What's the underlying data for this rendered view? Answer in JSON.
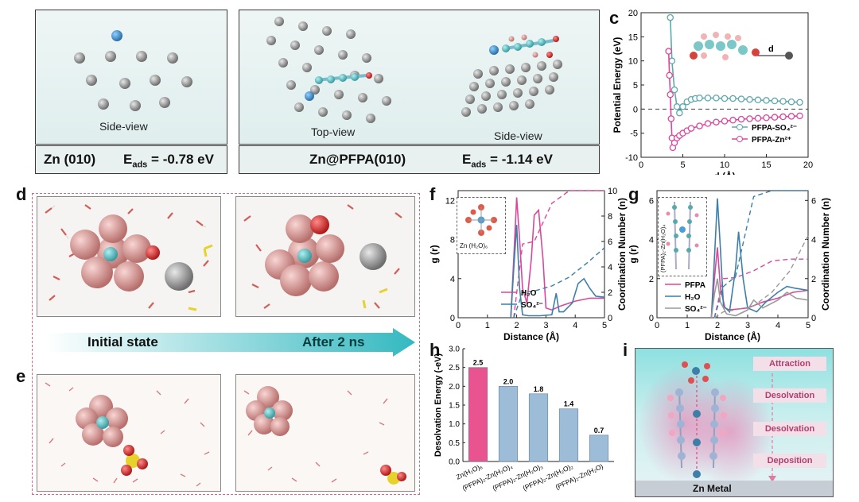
{
  "panels": {
    "a": {
      "label": "a",
      "caption": "Side-view",
      "surface": "Zn (010)",
      "energy_prefix": "E",
      "energy_sub": "ads",
      "energy_value": "= -0.78 eV"
    },
    "b": {
      "label": "b",
      "caption_left": "Top-view",
      "caption_right": "Side-view",
      "surface": "Zn@PFPA(010)",
      "energy_prefix": "E",
      "energy_sub": "ads",
      "energy_value": "= -1.14 eV"
    },
    "c": {
      "label": "c"
    },
    "d": {
      "label": "d"
    },
    "e": {
      "label": "e"
    },
    "f": {
      "label": "f",
      "inset": "Zn (H₂O)₆"
    },
    "g": {
      "label": "g",
      "inset": "(PFPA)₂-Zn(H₂O)₄"
    },
    "h": {
      "label": "h"
    },
    "i": {
      "label": "i",
      "stages": [
        "Attraction",
        "Desolvation",
        "Desolvation",
        "Deposition"
      ],
      "bottom": "Zn Metal"
    }
  },
  "arrow": {
    "left": "Initial state",
    "right": "After 2 ns"
  },
  "colors": {
    "teal": "#5fa8ad",
    "pink": "#d9489c",
    "grey": "#9a9a9a",
    "red": "#e03a5a",
    "blue": "#3d7fa8",
    "bar_pink": "#e9538f",
    "bar_blue": "#9dbcd8"
  },
  "chart_data": [
    {
      "id": "c",
      "type": "line",
      "xlabel": "d (Å)",
      "ylabel": "Potential Energy (eV)",
      "xlim": [
        0,
        20
      ],
      "ylim": [
        -10,
        20
      ],
      "xticks": [
        "0",
        "5",
        "10",
        "15",
        "20"
      ],
      "yticks": [
        "-10",
        "-5",
        "0",
        "5",
        "10",
        "15",
        "20"
      ],
      "inset_label": "d",
      "series": [
        {
          "name": "PFPA-SO₄²⁻",
          "color": "#5fa8ad",
          "x": [
            3.5,
            3.7,
            4.0,
            4.3,
            4.6,
            5.0,
            5.5,
            6.0,
            6.5,
            7.0,
            8.0,
            9.0,
            10.0,
            11.0,
            12.0,
            13.0,
            14.0,
            15.0,
            16.0,
            17.0,
            18.0,
            19.0
          ],
          "y": [
            19,
            10,
            4,
            0.5,
            -0.8,
            0.5,
            1.5,
            2.0,
            2.2,
            2.3,
            2.3,
            2.3,
            2.2,
            2.2,
            2.1,
            2.0,
            1.9,
            1.8,
            1.7,
            1.6,
            1.5,
            1.4
          ]
        },
        {
          "name": "PFPA-Zn²⁺",
          "color": "#d9489c",
          "x": [
            3.3,
            3.4,
            3.5,
            3.6,
            3.7,
            3.8,
            4.0,
            4.3,
            4.6,
            5.0,
            5.5,
            6.0,
            7.0,
            8.0,
            9.0,
            10.0,
            11.0,
            12.0,
            13.0,
            14.0,
            15.0,
            16.0,
            17.0,
            18.0,
            19.0
          ],
          "y": [
            12,
            7,
            3,
            -2,
            -6,
            -8,
            -7,
            -6,
            -5.5,
            -5,
            -4.5,
            -4,
            -3.5,
            -3,
            -2.7,
            -2.5,
            -2.3,
            -2.1,
            -2.0,
            -1.9,
            -1.8,
            -1.7,
            -1.6,
            -1.5,
            -1.4
          ]
        }
      ]
    },
    {
      "id": "f",
      "type": "line",
      "xlabel": "Distance (Å)",
      "ylabel": "g (r)",
      "ylabel_right": "Coordination Number (n)",
      "xlim": [
        0,
        5
      ],
      "ylim": [
        0,
        13
      ],
      "ylim_right": [
        0,
        10
      ],
      "xticks": [
        "0",
        "1",
        "2",
        "3",
        "4",
        "5"
      ],
      "yticks": [
        "0",
        "4",
        "8",
        "12"
      ],
      "yticks_right": [
        "0",
        "2",
        "4",
        "6",
        "8",
        "10"
      ],
      "series": [
        {
          "name": "H₂O",
          "color": "#d9489c",
          "x": [
            1.8,
            1.9,
            2.0,
            2.1,
            2.2,
            2.35,
            2.5,
            2.6,
            2.75,
            2.9,
            3.0,
            3.2,
            3.5,
            4.0,
            4.5,
            5.0
          ],
          "y": [
            0,
            6,
            12.3,
            8,
            3,
            1.5,
            6,
            10.5,
            11,
            6,
            1,
            0.8,
            1.2,
            1.7,
            2.0,
            2.0
          ]
        },
        {
          "name": "SO₄²⁻",
          "color": "#3d7fa8",
          "x": [
            1.8,
            1.9,
            2.0,
            2.1,
            2.2,
            2.4,
            2.8,
            3.2,
            3.35,
            3.45,
            3.6,
            3.9,
            4.1,
            4.3,
            4.5,
            4.7,
            5.0
          ],
          "y": [
            0,
            5,
            9.5,
            3,
            0.3,
            0.2,
            0.2,
            0.3,
            2.5,
            0.6,
            0.6,
            1.5,
            3.5,
            4.0,
            3.0,
            2.2,
            2.1
          ]
        }
      ]
    },
    {
      "id": "g",
      "type": "line",
      "xlabel": "Distance (Å)",
      "ylabel": "g (r)",
      "ylabel_right": "Coordination Number (n)",
      "xlim": [
        0,
        5
      ],
      "ylim": [
        0,
        6.5
      ],
      "ylim_right": [
        0,
        6.5
      ],
      "xticks": [
        "0",
        "1",
        "2",
        "3",
        "4",
        "5"
      ],
      "yticks": [
        "0",
        "2",
        "4",
        "6"
      ],
      "yticks_right": [
        "0",
        "2",
        "4",
        "6"
      ],
      "series": [
        {
          "name": "PFPA",
          "color": "#d9489c",
          "x": [
            1.8,
            1.9,
            2.0,
            2.1,
            2.25,
            2.4,
            3.0,
            3.5,
            4.0,
            4.5,
            5.0
          ],
          "y": [
            0,
            2,
            3.6,
            1.5,
            0.5,
            0.4,
            0.5,
            0.8,
            1.0,
            1.3,
            1.4
          ]
        },
        {
          "name": "H₂O",
          "color": "#3d7fa8",
          "x": [
            1.8,
            1.9,
            2.0,
            2.1,
            2.2,
            2.4,
            2.6,
            2.7,
            2.85,
            3.0,
            3.3,
            3.6,
            4.0,
            4.3,
            4.6,
            5.0
          ],
          "y": [
            0,
            3,
            6.1,
            3.5,
            0.6,
            0.3,
            2.5,
            4.4,
            2.0,
            0.5,
            0.3,
            0.8,
            1.3,
            1.6,
            1.5,
            1.4
          ]
        },
        {
          "name": "SO₄²⁻",
          "color": "#9a9a9a",
          "x": [
            1.8,
            1.9,
            2.0,
            2.1,
            2.3,
            2.6,
            3.0,
            3.2,
            3.5,
            4.0,
            4.3,
            4.6,
            5.0
          ],
          "y": [
            0,
            1.2,
            2.0,
            0.8,
            0.2,
            0.1,
            0.4,
            0.9,
            0.5,
            0.9,
            1.3,
            1.0,
            0.9
          ]
        }
      ]
    },
    {
      "id": "h",
      "type": "bar",
      "ylabel": "Desolvation Energy (-eV)",
      "ylim": [
        0,
        3.0
      ],
      "yticks": [
        "0.0",
        "0.5",
        "1.0",
        "1.5",
        "2.0",
        "2.5",
        "3.0"
      ],
      "categories": [
        "Zn(H₂O)₆",
        "(PFPA)₂-Zn(H₂O)₄",
        "(PFPA)₂-Zn(H₂O)₃",
        "(PFPA)₂-Zn(H₂O)₂",
        "(PFPA)₂-Zn(H₂O)"
      ],
      "values": [
        2.5,
        2.0,
        1.8,
        1.4,
        0.7
      ],
      "value_labels": [
        "2.5",
        "2.0",
        "1.8",
        "1.4",
        "0.7"
      ]
    }
  ]
}
